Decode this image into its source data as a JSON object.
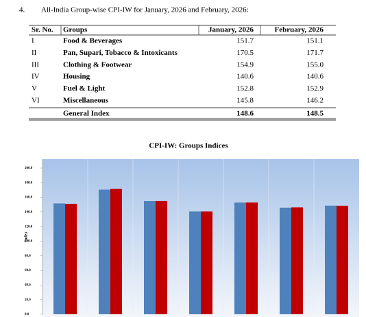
{
  "heading": {
    "number": "4.",
    "text": "All-India Group-wise CPI-IW for January, 2026 and February, 2026:"
  },
  "table": {
    "columns": [
      "Sr. No.",
      "Groups",
      "January, 2026",
      "February, 2026"
    ],
    "rows": [
      [
        "I",
        "Food & Beverages",
        "151.7",
        "151.1"
      ],
      [
        "II",
        "Pan, Supari, Tobacco & Intoxicants",
        "170.5",
        "171.7"
      ],
      [
        "III",
        "Clothing & Footwear",
        "154.9",
        "155.0"
      ],
      [
        "IV",
        "Housing",
        "140.6",
        "140.6"
      ],
      [
        "V",
        "Fuel & Light",
        "152.8",
        "152.9"
      ],
      [
        "VI",
        "Miscellaneous",
        "145.8",
        "146.2"
      ]
    ],
    "total": [
      "General Index",
      "148.6",
      "148.5"
    ]
  },
  "chart_data": {
    "type": "bar",
    "title": "CPI-IW: Groups Indices",
    "y_label": "Index",
    "categories": [
      null,
      null,
      null,
      null,
      null,
      null,
      null
    ],
    "series": [
      {
        "color": "#4f81bd",
        "values": [
          151.7,
          170.5,
          154.9,
          140.6,
          152.8,
          145.8,
          148.6
        ]
      },
      {
        "color": "#c00000",
        "values": [
          151.1,
          171.7,
          155.0,
          140.6,
          152.9,
          146.2,
          148.5
        ]
      }
    ],
    "ylim": [
      0,
      200
    ],
    "yticks": [
      {
        "value": 0,
        "label": "0.0"
      },
      {
        "value": 20,
        "label": "20.0"
      },
      {
        "value": 40,
        "label": "40.0"
      },
      {
        "value": 60,
        "label": "60.0"
      },
      {
        "value": 80,
        "label": "80.0"
      },
      {
        "value": 100,
        "label": "100.0"
      },
      {
        "value": 120,
        "label": "120.0"
      },
      {
        "value": 140,
        "label": "140.0"
      },
      {
        "value": 160,
        "label": "160.0"
      },
      {
        "value": 180,
        "label": "180.0"
      },
      {
        "value": 200,
        "label": "200.0"
      }
    ]
  }
}
